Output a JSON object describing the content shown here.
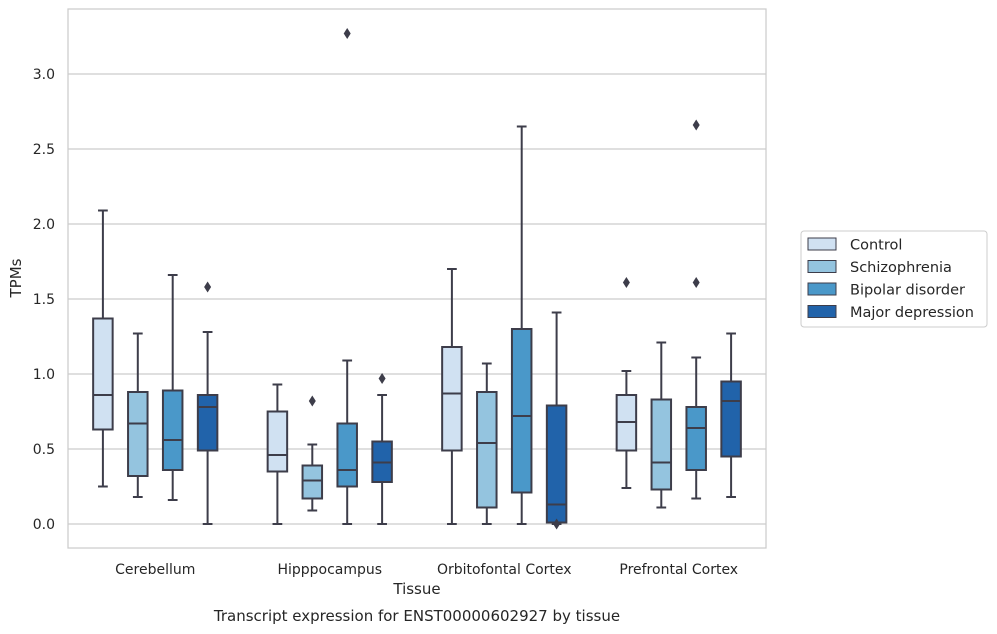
{
  "chart_data": {
    "type": "box",
    "title": "Transcript expression for ENST00000602927 by tissue",
    "xlabel": "Tissue",
    "ylabel": "TPMs",
    "ylim": [
      -0.16,
      3.44
    ],
    "yticks": [
      "0.0",
      "0.5",
      "1.0",
      "1.5",
      "2.0",
      "2.5",
      "3.0"
    ],
    "grid": true,
    "legend_position": "right",
    "categories": [
      "Cerebellum",
      "Hipppocampus",
      "Orbitofontal Cortex",
      "Prefrontal Cortex"
    ],
    "series": [
      {
        "name": "Control",
        "color": "#d0e1f2",
        "boxes": [
          {
            "whislo": 0.25,
            "q1": 0.63,
            "med": 0.86,
            "q3": 1.37,
            "whishi": 2.09,
            "fliers": []
          },
          {
            "whislo": 0.0,
            "q1": 0.35,
            "med": 0.46,
            "q3": 0.75,
            "whishi": 0.93,
            "fliers": []
          },
          {
            "whislo": 0.0,
            "q1": 0.49,
            "med": 0.87,
            "q3": 1.18,
            "whishi": 1.7,
            "fliers": []
          },
          {
            "whislo": 0.24,
            "q1": 0.49,
            "med": 0.68,
            "q3": 0.86,
            "whishi": 1.02,
            "fliers": [
              1.61
            ]
          }
        ]
      },
      {
        "name": "Schizophrenia",
        "color": "#94c4df",
        "boxes": [
          {
            "whislo": 0.18,
            "q1": 0.32,
            "med": 0.67,
            "q3": 0.88,
            "whishi": 1.27,
            "fliers": []
          },
          {
            "whislo": 0.09,
            "q1": 0.17,
            "med": 0.29,
            "q3": 0.39,
            "whishi": 0.53,
            "fliers": [
              0.82
            ]
          },
          {
            "whislo": 0.0,
            "q1": 0.11,
            "med": 0.54,
            "q3": 0.88,
            "whishi": 1.07,
            "fliers": []
          },
          {
            "whislo": 0.11,
            "q1": 0.23,
            "med": 0.41,
            "q3": 0.83,
            "whishi": 1.21,
            "fliers": []
          }
        ]
      },
      {
        "name": "Bipolar disorder",
        "color": "#4a98c9",
        "boxes": [
          {
            "whislo": 0.16,
            "q1": 0.36,
            "med": 0.56,
            "q3": 0.89,
            "whishi": 1.66,
            "fliers": []
          },
          {
            "whislo": 0.0,
            "q1": 0.25,
            "med": 0.36,
            "q3": 0.67,
            "whishi": 1.09,
            "fliers": [
              3.27
            ]
          },
          {
            "whislo": 0.0,
            "q1": 0.21,
            "med": 0.72,
            "q3": 1.3,
            "whishi": 2.65,
            "fliers": []
          },
          {
            "whislo": 0.17,
            "q1": 0.36,
            "med": 0.64,
            "q3": 0.78,
            "whishi": 1.11,
            "fliers": [
              1.61,
              2.66
            ]
          }
        ]
      },
      {
        "name": "Major depression",
        "color": "#2163aa",
        "boxes": [
          {
            "whislo": 0.0,
            "q1": 0.49,
            "med": 0.78,
            "q3": 0.86,
            "whishi": 1.28,
            "fliers": [
              1.58
            ]
          },
          {
            "whislo": 0.0,
            "q1": 0.28,
            "med": 0.41,
            "q3": 0.55,
            "whishi": 0.86,
            "fliers": [
              0.97
            ]
          },
          {
            "whislo": 0.0,
            "q1": 0.01,
            "med": 0.13,
            "q3": 0.79,
            "whishi": 1.41,
            "fliers": [
              0.0
            ]
          },
          {
            "whislo": 0.18,
            "q1": 0.45,
            "med": 0.82,
            "q3": 0.95,
            "whishi": 1.27,
            "fliers": []
          }
        ]
      }
    ]
  }
}
